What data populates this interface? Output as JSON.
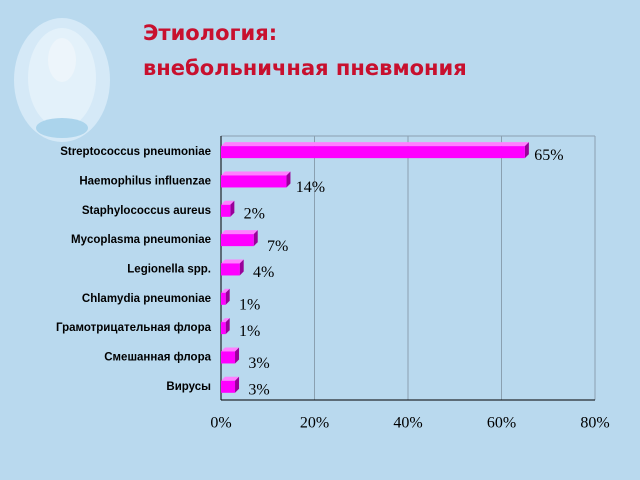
{
  "chart_data": {
    "type": "hbar",
    "title": [
      "Этиология:",
      "внебольничная пневмония"
    ],
    "categories": [
      "Streptococcus pneumoniae",
      "Haemophilus influenzae",
      "Staphylococcus aureus",
      "Mycoplasma pneumoniae",
      "Legionella spp.",
      "Chlamydia pneumoniae",
      "Грамотрицательная флора",
      "Смешанная флора",
      "Вирусы"
    ],
    "values": [
      65,
      14,
      2,
      7,
      4,
      1,
      1,
      3,
      3
    ],
    "value_labels": [
      "65%",
      "14%",
      "2%",
      "7%",
      "4%",
      "1%",
      "1%",
      "3%",
      "3%"
    ],
    "color": "#ff00ff",
    "xlim": [
      0,
      80
    ],
    "xticks": [
      {
        "value": 0,
        "label": "0%"
      },
      {
        "value": 20,
        "label": "20%"
      },
      {
        "value": 40,
        "label": "40%"
      },
      {
        "value": 60,
        "label": "60%"
      },
      {
        "value": 80,
        "label": "80%"
      }
    ],
    "grid": true
  }
}
